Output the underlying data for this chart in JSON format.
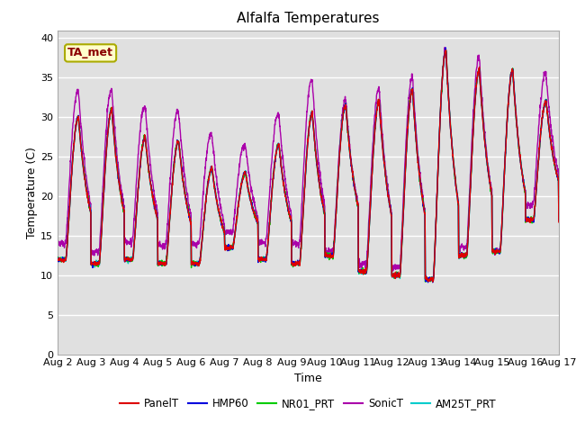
{
  "title": "Alfalfa Temperatures",
  "xlabel": "Time",
  "ylabel": "Temperature (C)",
  "ylim": [
    0,
    41
  ],
  "yticks": [
    0,
    5,
    10,
    15,
    20,
    25,
    30,
    35,
    40
  ],
  "annotation_text": "TA_met",
  "bg_color": "#e0e0e0",
  "fig_color": "#ffffff",
  "series_colors": {
    "PanelT": "#dd0000",
    "HMP60": "#0000dd",
    "NR01_PRT": "#00cc00",
    "SonicT": "#aa00aa",
    "AM25T_PRT": "#00cccc"
  },
  "legend_labels": [
    "PanelT",
    "HMP60",
    "NR01_PRT",
    "SonicT",
    "AM25T_PRT"
  ],
  "n_days": 15,
  "x_tick_labels": [
    "Aug 2",
    "Aug 3",
    "Aug 4",
    "Aug 5",
    "Aug 6",
    "Aug 7",
    "Aug 8",
    "Aug 9",
    "Aug 10",
    "Aug 11",
    "Aug 12",
    "Aug 13",
    "Aug 14",
    "Aug 15",
    "Aug 16",
    "Aug 17"
  ],
  "line_width": 1.0,
  "day_maxes": [
    30,
    31,
    27.5,
    27,
    23.5,
    23,
    26.5,
    30.5,
    31.5,
    32,
    33.5,
    38.5,
    36,
    36,
    32
  ],
  "day_mins": [
    12,
    11.5,
    12,
    11.5,
    11.5,
    13.5,
    12,
    11.5,
    12.5,
    10.5,
    10,
    9.5,
    12.5,
    13,
    17
  ],
  "sonic_extra": [
    4,
    3,
    4.5,
    4.5,
    5,
    4,
    4.5,
    5,
    1,
    2,
    2,
    0,
    2,
    0,
    4
  ]
}
